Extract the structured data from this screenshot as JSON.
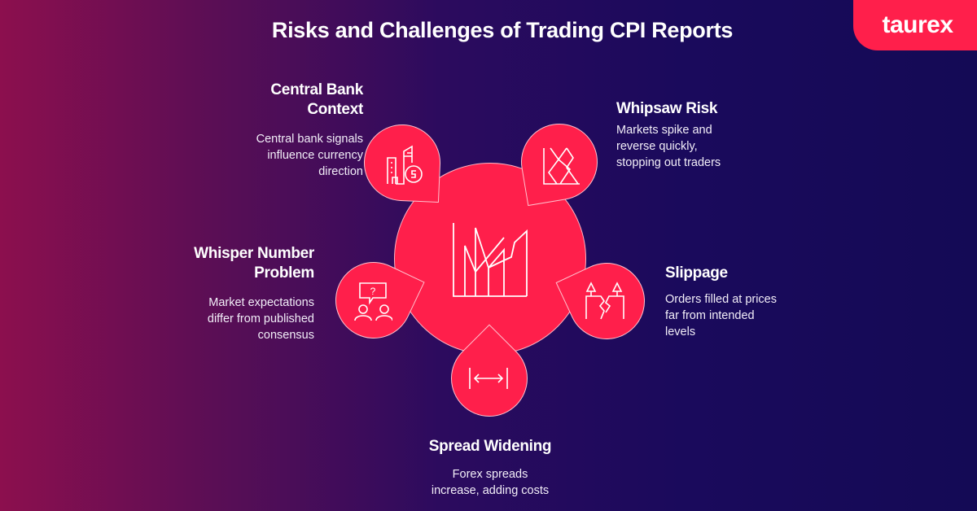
{
  "title": "Risks and Challenges of Trading CPI Reports",
  "logo": "taurex",
  "colors": {
    "accent": "#ff1f4b",
    "bg_left": "#8c0f4e",
    "bg_right": "#140a55"
  },
  "center": {
    "icon": "volatile-chart-icon"
  },
  "items": [
    {
      "title_1": "Central Bank",
      "title_2": "Context",
      "desc_1": "Central bank signals",
      "desc_2": "influence currency",
      "desc_3": "direction",
      "icon": "bank-dollar-icon"
    },
    {
      "title_1": "Whipsaw Risk",
      "title_2": "",
      "desc_1": "Markets spike and",
      "desc_2": "reverse quickly,",
      "desc_3": "stopping out traders",
      "icon": "zigzag-chart-icon"
    },
    {
      "title_1": "Whisper Number",
      "title_2": "Problem",
      "desc_1": "Market expectations",
      "desc_2": "differ from published",
      "desc_3": "consensus",
      "icon": "people-question-icon"
    },
    {
      "title_1": "Slippage",
      "title_2": "",
      "desc_1": "Orders filled at prices",
      "desc_2": "far from intended",
      "desc_3": "levels",
      "icon": "broken-ground-icon"
    },
    {
      "title_1": "Spread Widening",
      "title_2": "",
      "desc_1": "Forex spreads",
      "desc_2": "increase, adding costs",
      "desc_3": "",
      "icon": "width-arrows-icon"
    }
  ]
}
